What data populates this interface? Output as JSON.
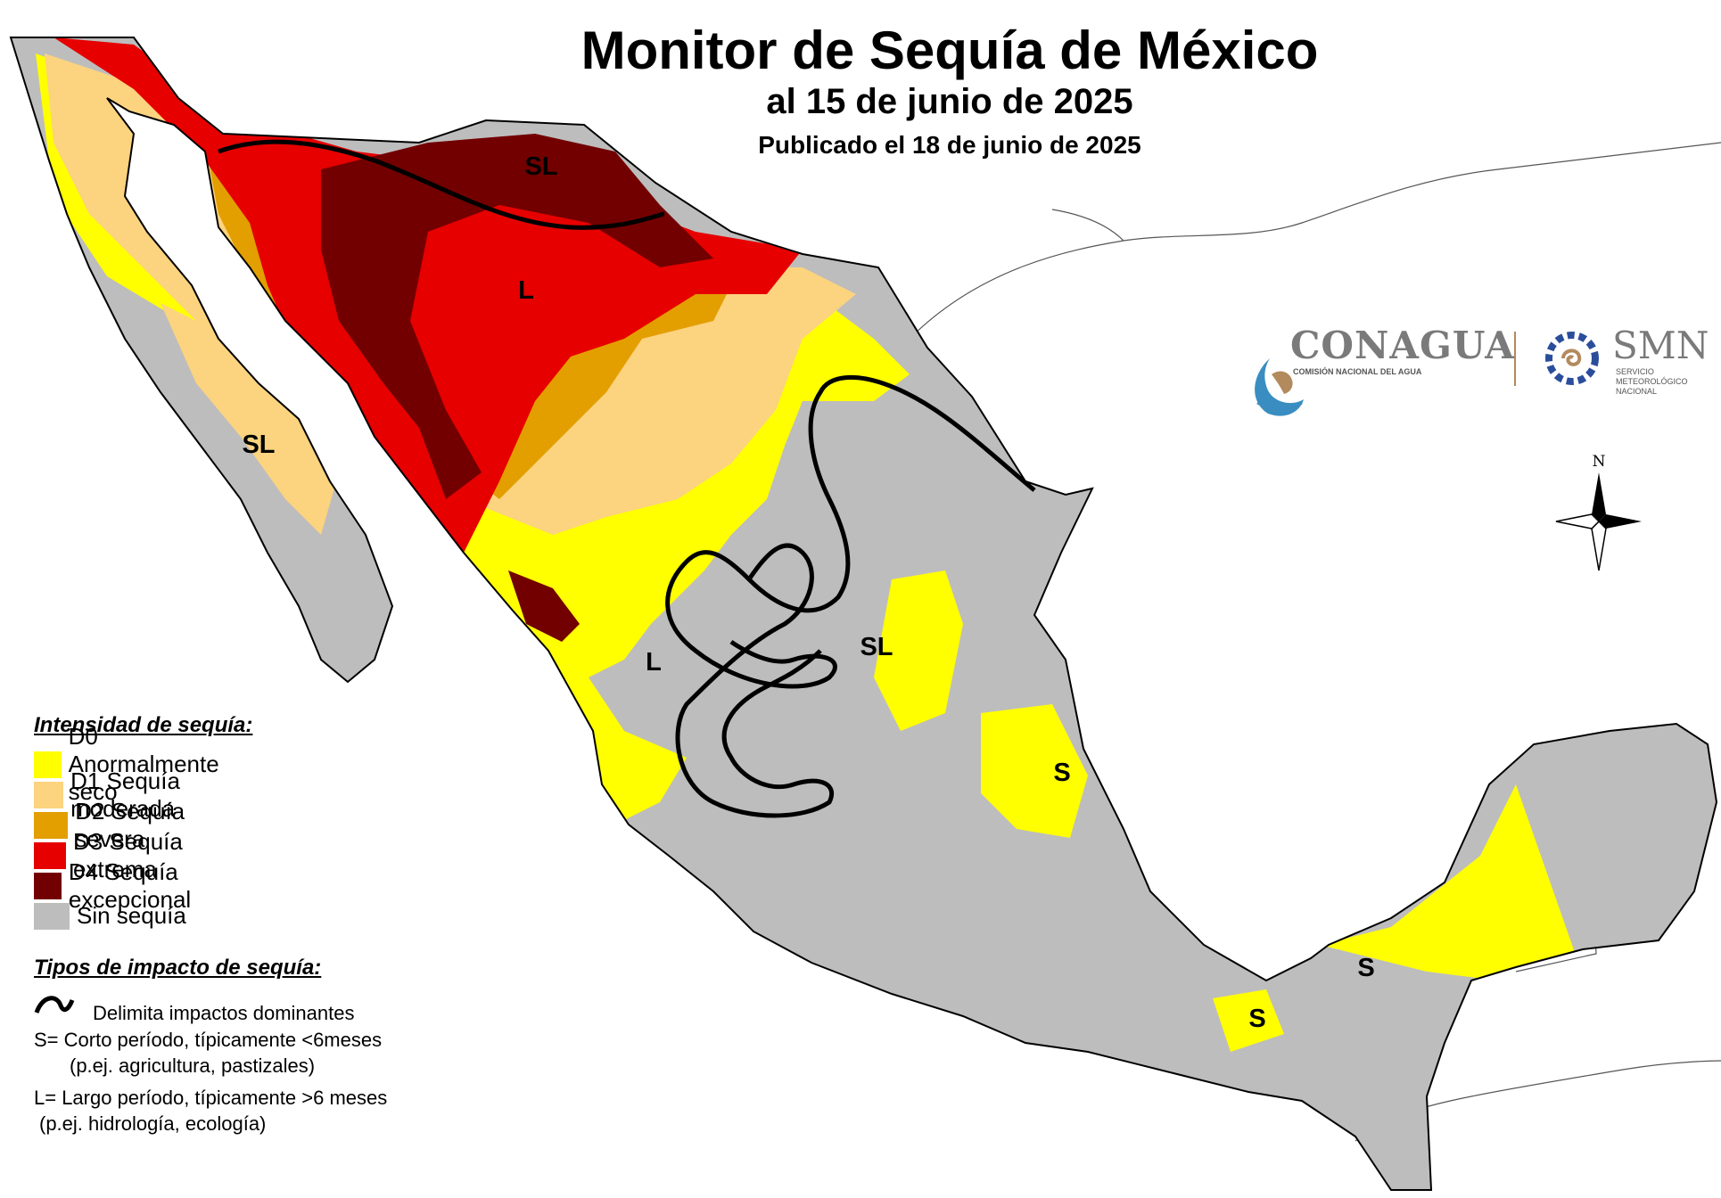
{
  "header": {
    "title": "Monitor de Sequía de México",
    "date": "al 15 de junio de 2025",
    "published": "Publicado el 18 de junio de 2025"
  },
  "legend": {
    "heading": "Intensidad de sequía:",
    "items": [
      {
        "code": "D0",
        "label": "D0 Anormalmente seco",
        "color": "#ffff00"
      },
      {
        "code": "D1",
        "label": "D1 Sequía moderada",
        "color": "#fcd37f"
      },
      {
        "code": "D2",
        "label": "D2 Sequía severa",
        "color": "#e39e00"
      },
      {
        "code": "D3",
        "label": "D3 Sequía extrema",
        "color": "#e60000"
      },
      {
        "code": "D4",
        "label": "D4 Sequía excepcional",
        "color": "#730000"
      },
      {
        "code": "none",
        "label": "Sin sequía",
        "color": "#bdbdbd"
      }
    ]
  },
  "impacts": {
    "heading": "Tipos de impacto de sequía:",
    "delimiter": "Delimita impactos dominantes",
    "short_term": "S= Corto período, típicamente <6meses",
    "short_term_examples": "(p.ej. agricultura, pastizales)",
    "long_term": "L= Largo período, típicamente >6 meses",
    "long_term_examples": "(p.ej. hidrología, ecología)"
  },
  "map_labels": [
    "SL",
    "L",
    "SL",
    "L",
    "SL",
    "S",
    "S",
    "S"
  ],
  "logos": {
    "conagua": "CONAGUA",
    "conagua_sub": "COMISIÓN NACIONAL DEL AGUA",
    "smn": "SMN",
    "smn_sub": [
      "SERVICIO",
      "METEOROLÓGICO",
      "NACIONAL"
    ]
  },
  "compass": "N"
}
